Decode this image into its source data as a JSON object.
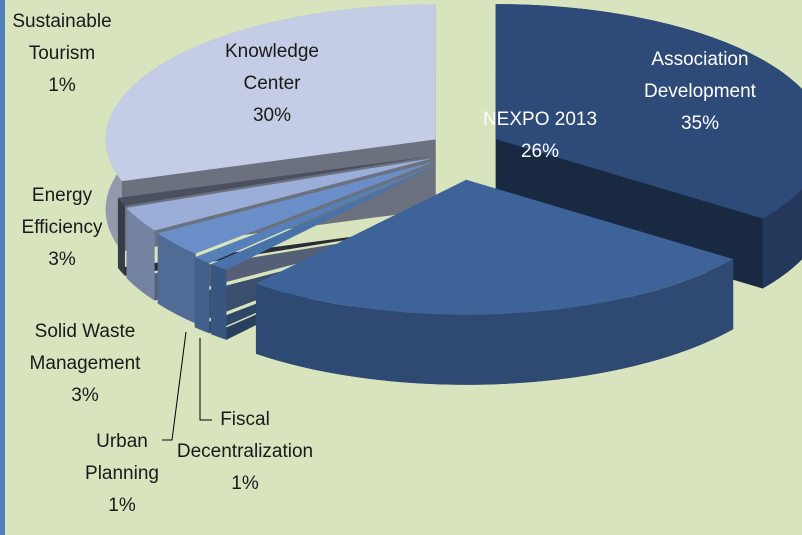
{
  "chart_data": {
    "type": "pie",
    "categories": [
      "Association Development",
      "NEXPO 2013",
      "Fiscal Decentralization",
      "Urban Planning",
      "Solid Waste Management",
      "Energy Efficiency",
      "Sustainable Tourism",
      "Knowledge Center"
    ],
    "values": [
      35,
      26,
      1,
      1,
      3,
      3,
      1,
      30
    ],
    "value_labels": [
      "35%",
      "26%",
      "1%",
      "1%",
      "3%",
      "3%",
      "1%",
      "30%"
    ],
    "colors": [
      "#2e4a78",
      "#3d6399",
      "#4a72aa",
      "#5580b8",
      "#6a8fc8",
      "#9aaed8",
      "#4b5060",
      "#c5cde6"
    ]
  }
}
